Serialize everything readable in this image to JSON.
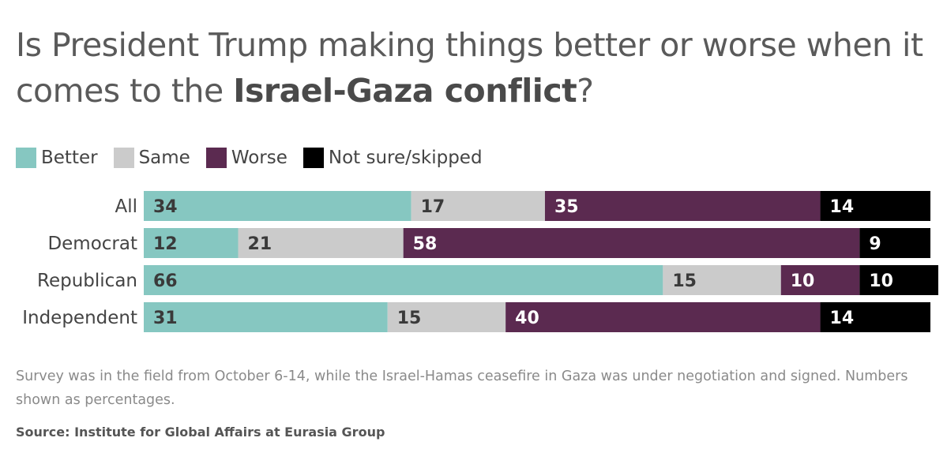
{
  "title_part1": "Is President Trump making things better or worse when it comes to the ",
  "title_bold": "Israel-Gaza conflict",
  "title_end": "?",
  "note": "Survey was in the field from October 6-14, while the Israel-Hamas ceasefire in Gaza was under negotiation and signed. Numbers shown as percentages.",
  "source": "Source: Institute for Global Affairs at Eurasia Group",
  "colors": {
    "better": "#86c7c1",
    "same": "#cbcbcb",
    "worse": "#5b2a50",
    "not_sure": "#000000",
    "label_dark": "#3a3a3a",
    "label_light": "#ffffff"
  },
  "chart_data": {
    "type": "bar",
    "orientation": "horizontal",
    "stacked": true,
    "categories": [
      "All",
      "Democrat",
      "Republican",
      "Independent"
    ],
    "series": [
      {
        "name": "Better",
        "key": "better",
        "values": [
          34,
          12,
          66,
          31
        ]
      },
      {
        "name": "Same",
        "key": "same",
        "values": [
          17,
          21,
          15,
          15
        ]
      },
      {
        "name": "Worse",
        "key": "worse",
        "values": [
          35,
          58,
          10,
          40
        ]
      },
      {
        "name": "Not sure/skipped",
        "key": "not_sure",
        "values": [
          14,
          9,
          10,
          14
        ]
      }
    ],
    "xlim": [
      0,
      100
    ],
    "grid": false,
    "legend": "top-left"
  }
}
